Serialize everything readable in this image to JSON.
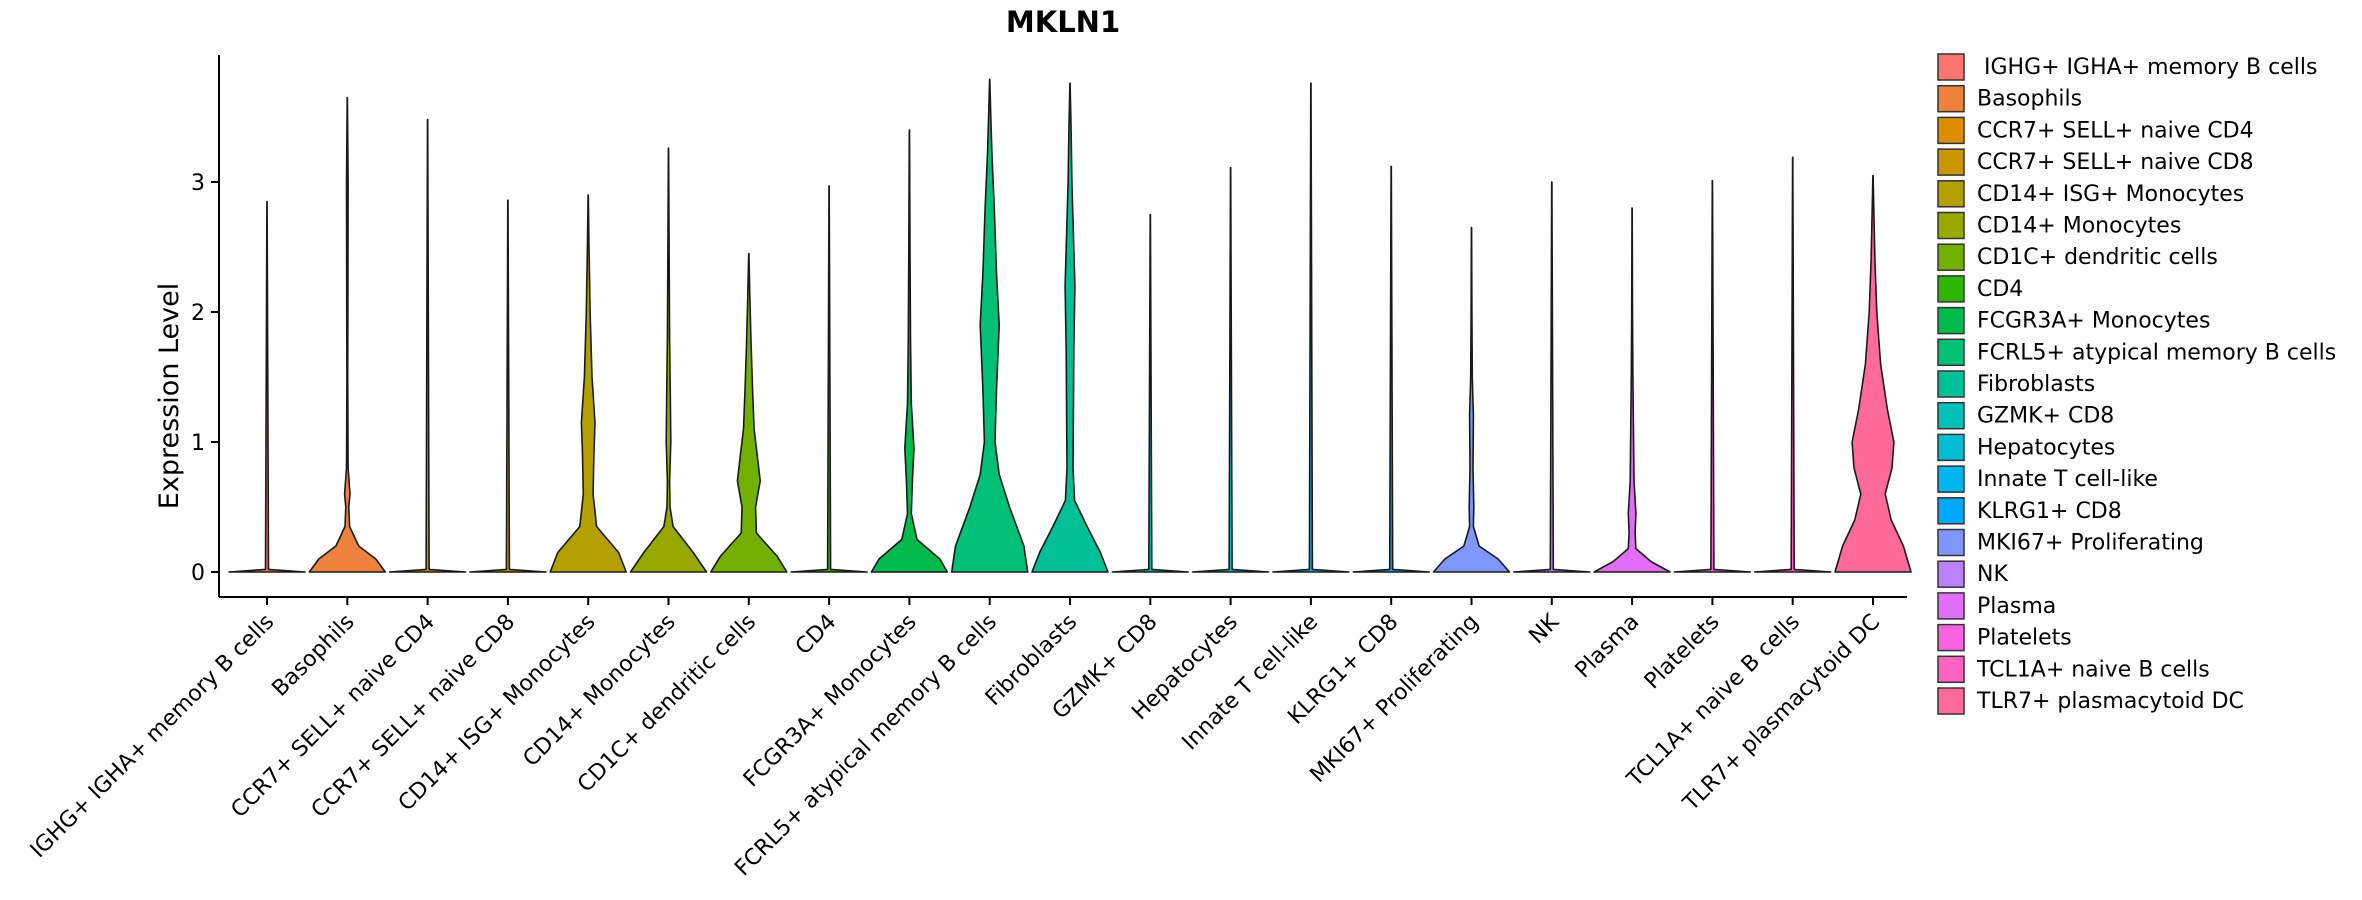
{
  "chart_data": {
    "type": "violin",
    "title": "MKLN1",
    "xlabel": "",
    "ylabel": "Expression Level",
    "ylim": [
      -0.18,
      4.0
    ],
    "yticks": [
      0,
      1,
      2,
      3
    ],
    "grid": false,
    "legend_position": "right",
    "categories": [
      "IGHG+ IGHA+ memory B cells",
      "Basophils",
      "CCR7+ SELL+ naive CD4",
      "CCR7+ SELL+ naive CD8",
      "CD14+ ISG+ Monocytes",
      "CD14+ Monocytes",
      "CD1C+ dendritic cells",
      "CD4",
      "FCGR3A+ Monocytes",
      "FCRL5+ atypical memory B cells",
      "Fibroblasts",
      "GZMK+ CD8",
      "Hepatocytes",
      "Innate T cell-like",
      "KLRG1+ CD8",
      "MKI67+ Proliferating",
      "NK",
      "Plasma",
      "Platelets",
      "TCL1A+ naive B cells",
      "TLR7+ plasmacytoid DC"
    ],
    "legend": [
      " IGHG+ IGHA+ memory B cells",
      "Basophils",
      "CCR7+ SELL+ naive CD4",
      "CCR7+ SELL+ naive CD8",
      "CD14+ ISG+ Monocytes",
      "CD14+ Monocytes",
      "CD1C+ dendritic cells",
      "CD4",
      "FCGR3A+ Monocytes",
      "FCRL5+ atypical memory B cells",
      "Fibroblasts",
      "GZMK+ CD8",
      "Hepatocytes",
      "Innate T cell-like",
      "KLRG1+ CD8",
      "MKI67+ Proliferating",
      "NK",
      "Plasma",
      "Platelets",
      "TCL1A+ naive B cells",
      "TLR7+ plasmacytoid DC"
    ],
    "colors": [
      "#F8766D",
      "#EC823C",
      "#DD8D00",
      "#CA9700",
      "#B3A000",
      "#97A900",
      "#71B000",
      "#2FB600",
      "#00BB4B",
      "#00BF76",
      "#00C098",
      "#00C0B7",
      "#00BDD4",
      "#00B5EE",
      "#00A7FF",
      "#7F96FF",
      "#BC81FF",
      "#E26EF7",
      "#F863DF",
      "#FF62C0",
      "#FF6A9A"
    ],
    "series": [
      {
        "name": "IGHG+ IGHA+ memory B cells",
        "max": 2.85,
        "density": [
          [
            0,
            1.0
          ],
          [
            0.02,
            0.04
          ],
          [
            2.85,
            0.002
          ]
        ]
      },
      {
        "name": "Basophils",
        "max": 3.65,
        "density": [
          [
            0,
            1.0
          ],
          [
            0.1,
            0.75
          ],
          [
            0.2,
            0.3
          ],
          [
            0.35,
            0.06
          ],
          [
            0.5,
            0.04
          ],
          [
            0.6,
            0.07
          ],
          [
            0.8,
            0.02
          ],
          [
            1.5,
            0.01
          ],
          [
            2.1,
            0.015
          ],
          [
            3.0,
            0.02
          ],
          [
            3.65,
            0.002
          ]
        ]
      },
      {
        "name": "CCR7+ SELL+ naive CD4",
        "max": 3.48,
        "density": [
          [
            0,
            1.0
          ],
          [
            0.02,
            0.04
          ],
          [
            3.48,
            0.002
          ]
        ]
      },
      {
        "name": "CCR7+ SELL+ naive CD8",
        "max": 2.86,
        "density": [
          [
            0,
            1.0
          ],
          [
            0.02,
            0.04
          ],
          [
            2.86,
            0.002
          ]
        ]
      },
      {
        "name": "CD14+ ISG+ Monocytes",
        "max": 2.9,
        "density": [
          [
            0,
            1.0
          ],
          [
            0.15,
            0.8
          ],
          [
            0.35,
            0.22
          ],
          [
            0.6,
            0.13
          ],
          [
            0.9,
            0.15
          ],
          [
            1.15,
            0.18
          ],
          [
            1.5,
            0.1
          ],
          [
            2.0,
            0.05
          ],
          [
            2.5,
            0.02
          ],
          [
            2.9,
            0.002
          ]
        ]
      },
      {
        "name": "CD14+ Monocytes",
        "max": 3.26,
        "density": [
          [
            0,
            1.0
          ],
          [
            0.15,
            0.65
          ],
          [
            0.35,
            0.12
          ],
          [
            0.5,
            0.04
          ],
          [
            0.7,
            0.03
          ],
          [
            1.0,
            0.06
          ],
          [
            1.3,
            0.05
          ],
          [
            1.8,
            0.03
          ],
          [
            2.5,
            0.015
          ],
          [
            3.26,
            0.002
          ]
        ]
      },
      {
        "name": "CD1C+ dendritic cells",
        "max": 2.45,
        "density": [
          [
            0,
            1.0
          ],
          [
            0.12,
            0.75
          ],
          [
            0.3,
            0.2
          ],
          [
            0.5,
            0.18
          ],
          [
            0.7,
            0.3
          ],
          [
            0.9,
            0.22
          ],
          [
            1.1,
            0.14
          ],
          [
            1.4,
            0.1
          ],
          [
            1.75,
            0.06
          ],
          [
            2.1,
            0.03
          ],
          [
            2.45,
            0.002
          ]
        ]
      },
      {
        "name": "CD4",
        "max": 2.97,
        "density": [
          [
            0,
            1.0
          ],
          [
            0.02,
            0.04
          ],
          [
            2.97,
            0.002
          ]
        ]
      },
      {
        "name": "FCGR3A+ Monocytes",
        "max": 3.4,
        "density": [
          [
            0,
            1.0
          ],
          [
            0.1,
            0.8
          ],
          [
            0.25,
            0.2
          ],
          [
            0.45,
            0.05
          ],
          [
            0.7,
            0.08
          ],
          [
            0.95,
            0.12
          ],
          [
            1.3,
            0.05
          ],
          [
            1.8,
            0.03
          ],
          [
            2.5,
            0.015
          ],
          [
            3.4,
            0.002
          ]
        ]
      },
      {
        "name": "FCRL5+ atypical memory B cells",
        "max": 3.79,
        "density": [
          [
            0,
            1.0
          ],
          [
            0.2,
            0.9
          ],
          [
            0.5,
            0.52
          ],
          [
            0.75,
            0.25
          ],
          [
            1.0,
            0.14
          ],
          [
            1.4,
            0.18
          ],
          [
            1.9,
            0.25
          ],
          [
            2.3,
            0.18
          ],
          [
            2.8,
            0.12
          ],
          [
            3.2,
            0.06
          ],
          [
            3.5,
            0.03
          ],
          [
            3.79,
            0.002
          ]
        ]
      },
      {
        "name": "Fibroblasts",
        "max": 3.76,
        "density": [
          [
            0,
            1.0
          ],
          [
            0.15,
            0.8
          ],
          [
            0.35,
            0.45
          ],
          [
            0.55,
            0.12
          ],
          [
            0.8,
            0.08
          ],
          [
            1.2,
            0.09
          ],
          [
            1.7,
            0.1
          ],
          [
            2.2,
            0.13
          ],
          [
            2.6,
            0.09
          ],
          [
            3.0,
            0.05
          ],
          [
            3.4,
            0.03
          ],
          [
            3.76,
            0.002
          ]
        ]
      },
      {
        "name": "GZMK+ CD8",
        "max": 2.75,
        "density": [
          [
            0,
            1.0
          ],
          [
            0.02,
            0.04
          ],
          [
            2.75,
            0.002
          ]
        ]
      },
      {
        "name": "Hepatocytes",
        "max": 3.11,
        "density": [
          [
            0,
            1.0
          ],
          [
            0.02,
            0.04
          ],
          [
            3.11,
            0.002
          ]
        ]
      },
      {
        "name": "Innate T cell-like",
        "max": 3.76,
        "density": [
          [
            0,
            1.0
          ],
          [
            0.02,
            0.04
          ],
          [
            3.76,
            0.002
          ]
        ]
      },
      {
        "name": "KLRG1+ CD8",
        "max": 3.12,
        "density": [
          [
            0,
            1.0
          ],
          [
            0.02,
            0.04
          ],
          [
            3.12,
            0.002
          ]
        ]
      },
      {
        "name": "MKI67+ Proliferating",
        "max": 2.65,
        "density": [
          [
            0,
            1.0
          ],
          [
            0.1,
            0.7
          ],
          [
            0.2,
            0.2
          ],
          [
            0.35,
            0.05
          ],
          [
            0.5,
            0.06
          ],
          [
            0.8,
            0.04
          ],
          [
            1.2,
            0.05
          ],
          [
            1.5,
            0.02
          ],
          [
            2.0,
            0.01
          ],
          [
            2.65,
            0.002
          ]
        ]
      },
      {
        "name": "NK",
        "max": 3.0,
        "density": [
          [
            0,
            1.0
          ],
          [
            0.02,
            0.04
          ],
          [
            3.0,
            0.002
          ]
        ]
      },
      {
        "name": "Plasma",
        "max": 2.8,
        "density": [
          [
            0,
            1.0
          ],
          [
            0.08,
            0.5
          ],
          [
            0.18,
            0.1
          ],
          [
            0.3,
            0.08
          ],
          [
            0.45,
            0.1
          ],
          [
            0.7,
            0.05
          ],
          [
            1.0,
            0.04
          ],
          [
            1.5,
            0.02
          ],
          [
            2.0,
            0.01
          ],
          [
            2.8,
            0.002
          ]
        ]
      },
      {
        "name": "Platelets",
        "max": 3.01,
        "density": [
          [
            0,
            1.0
          ],
          [
            0.02,
            0.04
          ],
          [
            3.01,
            0.002
          ]
        ]
      },
      {
        "name": "TCL1A+ naive B cells",
        "max": 3.19,
        "density": [
          [
            0,
            1.0
          ],
          [
            0.02,
            0.04
          ],
          [
            3.19,
            0.002
          ]
        ]
      },
      {
        "name": "TLR7+ plasmacytoid DC",
        "max": 3.05,
        "density": [
          [
            0,
            1.0
          ],
          [
            0.2,
            0.8
          ],
          [
            0.4,
            0.48
          ],
          [
            0.6,
            0.32
          ],
          [
            0.8,
            0.5
          ],
          [
            1.0,
            0.55
          ],
          [
            1.25,
            0.38
          ],
          [
            1.6,
            0.2
          ],
          [
            2.0,
            0.1
          ],
          [
            2.4,
            0.05
          ],
          [
            3.05,
            0.002
          ]
        ]
      }
    ]
  }
}
